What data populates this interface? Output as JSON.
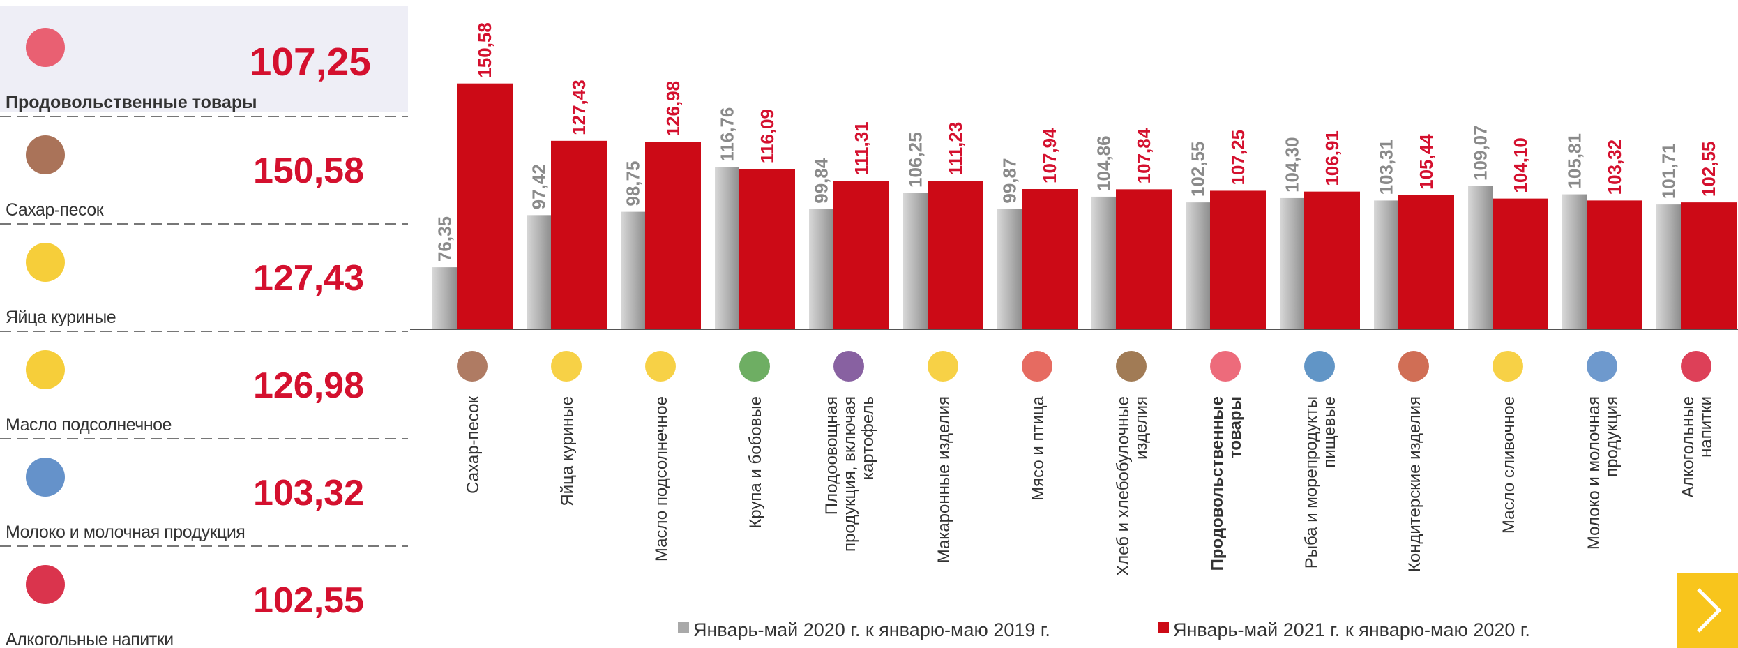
{
  "panel": [
    {
      "name": "Продовольственные товары",
      "value": "107,25"
    },
    {
      "name": "Сахар-песок",
      "value": "150,58"
    },
    {
      "name": "Яйца куриные",
      "value": "127,43"
    },
    {
      "name": "Масло подсолнечное",
      "value": "126,98"
    },
    {
      "name": "Молоко и молочная продукция",
      "value": "103,32"
    },
    {
      "name": "Алкогольные напитки",
      "value": "102,55"
    }
  ],
  "chart_data": {
    "type": "bar",
    "categories": [
      "Сахар-песок",
      "Яйца куриные",
      "Масло подсолнечное",
      "Крупа и бобовые",
      "Плодоовощная\nпродукция, включая\nкартофель",
      "Макаронные изделия",
      "Мясо и птица",
      "Хлеб и хлебобулочные\nизделия",
      "Продовольственные\nтовары",
      "Рыба и морепродукты\nпищевые",
      "Кондитерские изделия",
      "Масло сливочное",
      "Молоко и молочная\nпродукция",
      "Алкогольные\nнапитки"
    ],
    "highlight_category": 8,
    "ylim": [
      51.3,
      155
    ],
    "series": [
      {
        "name": "Январь-май 2020 г. к январю-маю 2019 г.",
        "color": "#a9a9a9",
        "values": [
          76.35,
          97.42,
          98.75,
          116.76,
          99.84,
          106.25,
          99.87,
          104.86,
          102.55,
          104.3,
          103.31,
          109.07,
          105.81,
          101.71
        ],
        "value_labels": [
          "76,35",
          "97,42",
          "98,75",
          "116,76",
          "99,84",
          "106,25",
          "99,87",
          "104,86",
          "102,55",
          "104,30",
          "103,31",
          "109,07",
          "105,81",
          "101,71"
        ]
      },
      {
        "name": "Январь-май 2021 г. к январю-маю 2020 г.",
        "color": "#cc0a16",
        "values": [
          150.58,
          127.43,
          126.98,
          116.09,
          111.31,
          111.23,
          107.94,
          107.84,
          107.25,
          106.91,
          105.44,
          104.1,
          103.32,
          102.55
        ],
        "value_labels": [
          "150,58",
          "127,43",
          "126,98",
          "116,09",
          "111,31",
          "111,23",
          "107,94",
          "107,84",
          "107,25",
          "106,91",
          "105,44",
          "104,10",
          "103,32",
          "102,55"
        ]
      }
    ]
  }
}
